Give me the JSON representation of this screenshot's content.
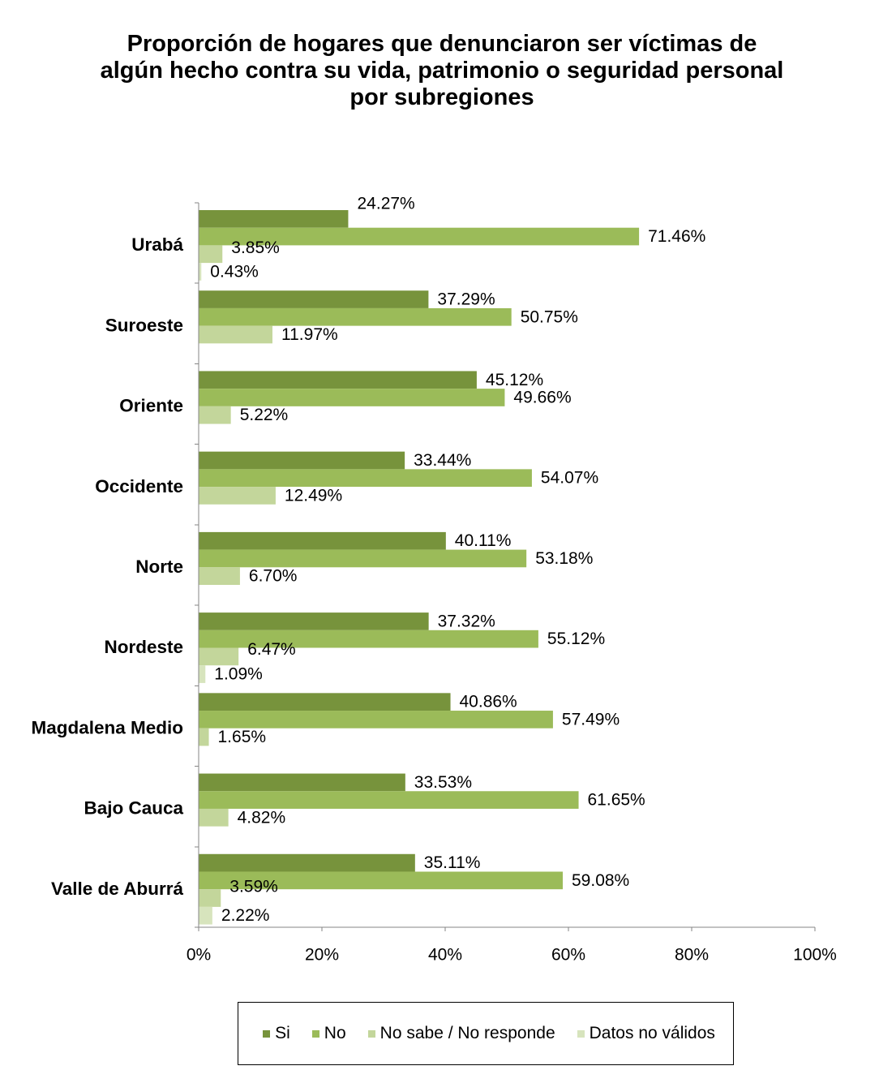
{
  "chart_data": {
    "type": "bar",
    "orientation": "horizontal",
    "title": "Proporción de hogares que denunciaron ser víctimas de\nalgún hecho contra su vida, patrimonio o seguridad personal\npor subregiones",
    "categories": [
      "Urabá",
      "Suroeste",
      "Oriente",
      "Occidente",
      "Norte",
      "Nordeste",
      "Magdalena Medio",
      "Bajo Cauca",
      "Valle de Aburrá"
    ],
    "series": [
      {
        "name": "Si",
        "color": "#77933C",
        "values": [
          24.27,
          37.29,
          45.12,
          33.44,
          40.11,
          37.32,
          40.86,
          33.53,
          35.11
        ],
        "labels": [
          "24.27%",
          "37.29%",
          "45.12%",
          "33.44%",
          "40.11%",
          "37.32%",
          "40.86%",
          "33.53%",
          "35.11%"
        ]
      },
      {
        "name": "No",
        "color": "#9BBB59",
        "values": [
          71.46,
          50.75,
          49.66,
          54.07,
          53.18,
          55.12,
          57.49,
          61.65,
          59.08
        ],
        "labels": [
          "71.46%",
          "50.75%",
          "49.66%",
          "54.07%",
          "53.18%",
          "55.12%",
          "57.49%",
          "61.65%",
          "59.08%"
        ]
      },
      {
        "name": "No sabe / No responde",
        "color": "#C3D69B",
        "values": [
          3.85,
          11.97,
          5.22,
          12.49,
          6.7,
          6.47,
          1.65,
          4.82,
          3.59
        ],
        "labels": [
          "3.85%",
          "11.97%",
          "5.22%",
          "12.49%",
          "6.70%",
          "6.47%",
          "1.65%",
          "4.82%",
          "3.59%"
        ]
      },
      {
        "name": "Datos no válidos",
        "color": "#D7E4BD",
        "values": [
          0.43,
          null,
          null,
          null,
          null,
          1.09,
          null,
          null,
          2.22
        ],
        "labels": [
          "0.43%",
          null,
          null,
          null,
          null,
          "1.09%",
          null,
          null,
          "2.22%"
        ]
      }
    ],
    "xlim": [
      0,
      100
    ],
    "x_ticks": [
      0,
      20,
      40,
      60,
      80,
      100
    ],
    "x_tick_labels": [
      "0%",
      "20%",
      "40%",
      "60%",
      "80%",
      "100%"
    ],
    "grid": false,
    "legend_position": "bottom"
  }
}
